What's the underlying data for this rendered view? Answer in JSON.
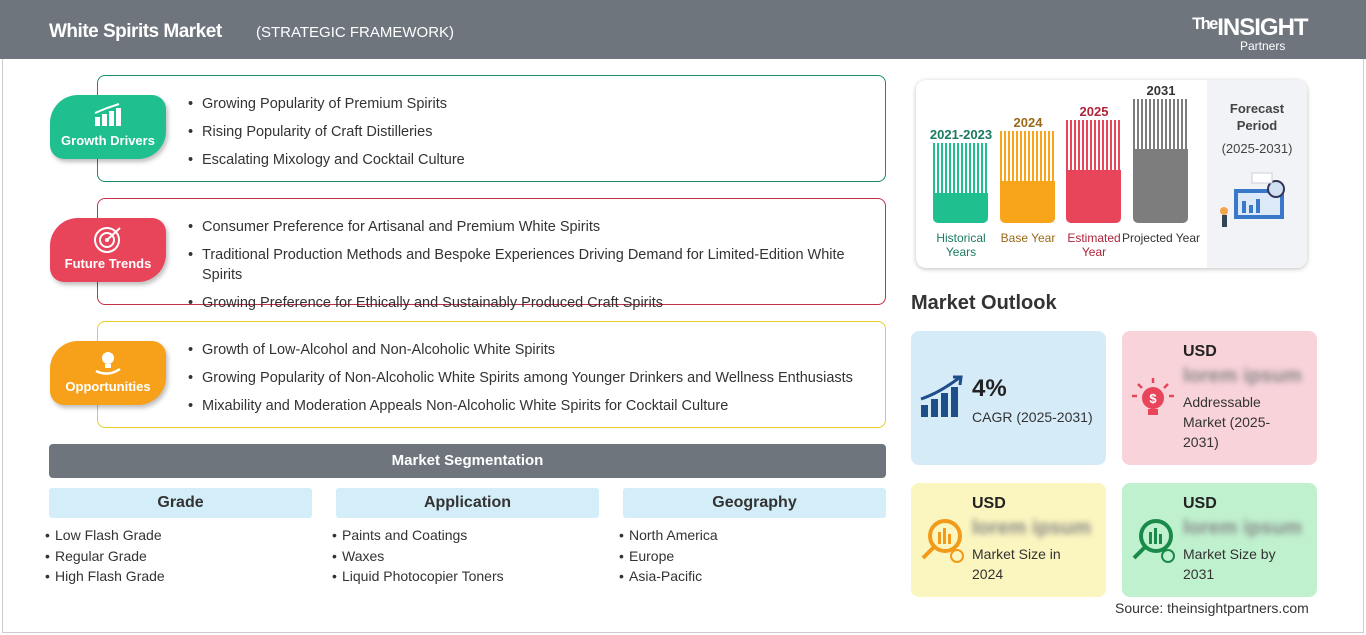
{
  "header": {
    "title": "White Spirits Market",
    "subtitle": "(STRATEGIC FRAMEWORK)",
    "logo": "The INSIGHT Partners"
  },
  "sections": [
    {
      "label": "Growth Drivers",
      "color": "#1fbf8f",
      "icon": "growth-chart-icon",
      "items": [
        "Growing Popularity of Premium Spirits",
        "Rising Popularity of Craft Distilleries",
        "Escalating Mixology and Cocktail Culture"
      ]
    },
    {
      "label": "Future Trends",
      "color": "#e8445a",
      "icon": "target-icon",
      "items": [
        "Consumer Preference for Artisanal and Premium White Spirits",
        "Traditional Production Methods and Bespoke Experiences Driving Demand for Limited-Edition White Spirits",
        "Growing Preference for Ethically and Sustainably Produced Craft Spirits"
      ]
    },
    {
      "label": "Opportunities",
      "color": "#f7a11a",
      "icon": "lightbulb-hand-icon",
      "items": [
        "Growth of Low-Alcohol and Non-Alcoholic White Spirits",
        "Growing Popularity of Non-Alcoholic White Spirits among Younger Drinkers and Wellness Enthusiasts",
        "Mixability and Moderation Appeals Non-Alcoholic White Spirits for Cocktail Culture"
      ]
    }
  ],
  "segmentation": {
    "title": "Market Segmentation",
    "columns": [
      {
        "title": "Grade",
        "items": [
          "Low Flash Grade",
          "Regular Grade",
          "High Flash Grade"
        ]
      },
      {
        "title": "Application",
        "items": [
          "Paints and Coatings",
          "Waxes",
          "Liquid Photocopier Toners"
        ]
      },
      {
        "title": "Geography",
        "items": [
          "North America",
          "Europe",
          "Asia-Pacific"
        ]
      }
    ]
  },
  "timeline": {
    "bars": [
      {
        "year": "2021-2023",
        "label": "Historical Years",
        "color": "#1fbf8f",
        "text_color": "#1a7a62"
      },
      {
        "year": "2024",
        "label": "Base Year",
        "color": "#f9a51c",
        "text_color": "#9a6a1a"
      },
      {
        "year": "2025",
        "label": "Estimated Year",
        "color": "#e8445a",
        "text_color": "#b0233a"
      },
      {
        "year": "2031",
        "label": "Projected Year",
        "color": "#7d7d7d",
        "text_color": "#333333"
      }
    ],
    "forecast_title": "Forecast Period",
    "forecast_range": "(2025-2031)"
  },
  "outlook": {
    "title": "Market Outlook",
    "cards": [
      {
        "value": "4%",
        "desc": "CAGR (2025-2031)",
        "color": "#d6ebf8",
        "icon": "growth-chart-icon"
      },
      {
        "value": "USD",
        "blur": "lorem ipsum",
        "desc": "Addressable Market (2025-2031)",
        "color": "#f8d3da",
        "icon": "lightbulb-dollar-icon"
      },
      {
        "value": "USD",
        "blur": "lorem ipsum",
        "desc": "Market Size in 2024",
        "color": "#fbf5bf",
        "icon": "magnifier-chart-icon"
      },
      {
        "value": "USD",
        "blur": "lorem ipsum",
        "desc": "Market Size by 2031",
        "color": "#bff1cf",
        "icon": "magnifier-chart-icon"
      }
    ]
  },
  "source": "Source: theinsightpartners.com"
}
